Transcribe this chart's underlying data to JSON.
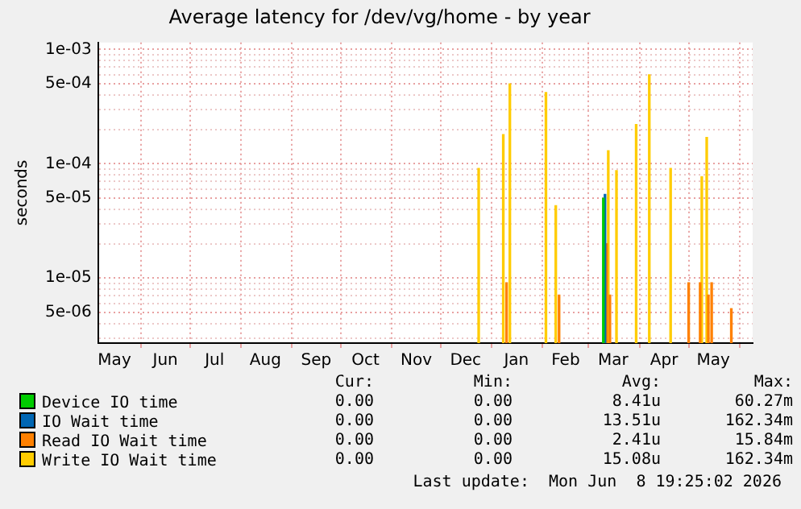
{
  "chart_data": {
    "type": "bar",
    "title": "Average latency for /dev/vg/home - by year",
    "ylabel": "seconds",
    "log": "y",
    "grid": true,
    "legend": "bottom",
    "xlim": [
      "2025-05-06",
      "2026-06-09"
    ],
    "xticks": [
      {
        "value": "2025-05-16",
        "label": "May"
      },
      {
        "value": "2025-06-01",
        "label": null
      },
      {
        "value": "2025-06-16",
        "label": "Jun"
      },
      {
        "value": "2025-07-01",
        "label": null
      },
      {
        "value": "2025-07-16",
        "label": "Jul"
      },
      {
        "value": "2025-08-01",
        "label": null
      },
      {
        "value": "2025-08-16",
        "label": "Aug"
      },
      {
        "value": "2025-09-01",
        "label": null
      },
      {
        "value": "2025-09-16",
        "label": "Sep"
      },
      {
        "value": "2025-10-01",
        "label": null
      },
      {
        "value": "2025-10-16",
        "label": "Oct"
      },
      {
        "value": "2025-11-01",
        "label": null
      },
      {
        "value": "2025-11-16",
        "label": "Nov"
      },
      {
        "value": "2025-12-01",
        "label": null
      },
      {
        "value": "2025-12-16",
        "label": "Dec"
      },
      {
        "value": "2026-01-01",
        "label": null
      },
      {
        "value": "2026-01-16",
        "label": "Jan"
      },
      {
        "value": "2026-02-01",
        "label": null
      },
      {
        "value": "2026-02-15",
        "label": "Feb"
      },
      {
        "value": "2026-03-01",
        "label": null
      },
      {
        "value": "2026-03-16",
        "label": "Mar"
      },
      {
        "value": "2026-04-01",
        "label": null
      },
      {
        "value": "2026-04-16",
        "label": "Apr"
      },
      {
        "value": "2026-05-01",
        "label": null
      },
      {
        "value": "2026-05-16",
        "label": "May"
      },
      {
        "value": "2026-06-01",
        "label": null
      }
    ],
    "ylim": [
      2.7e-06,
      0.00115
    ],
    "yticks": [
      {
        "value": 3e-06,
        "label": null
      },
      {
        "value": 4e-06,
        "label": null
      },
      {
        "value": 5e-06,
        "label": "5e-06"
      },
      {
        "value": 6e-06,
        "label": null
      },
      {
        "value": 7e-06,
        "label": null
      },
      {
        "value": 8e-06,
        "label": null
      },
      {
        "value": 9e-06,
        "label": null
      },
      {
        "value": 1e-05,
        "label": "1e-05"
      },
      {
        "value": 2e-05,
        "label": null
      },
      {
        "value": 3e-05,
        "label": null
      },
      {
        "value": 4e-05,
        "label": null
      },
      {
        "value": 5e-05,
        "label": "5e-05"
      },
      {
        "value": 6e-05,
        "label": null
      },
      {
        "value": 7e-05,
        "label": null
      },
      {
        "value": 8e-05,
        "label": null
      },
      {
        "value": 9e-05,
        "label": null
      },
      {
        "value": 0.0001,
        "label": "1e-04"
      },
      {
        "value": 0.0002,
        "label": null
      },
      {
        "value": 0.0003,
        "label": null
      },
      {
        "value": 0.0004,
        "label": null
      },
      {
        "value": 0.0005,
        "label": "5e-04"
      },
      {
        "value": 0.0006,
        "label": null
      },
      {
        "value": 0.0007,
        "label": null
      },
      {
        "value": 0.0008,
        "label": null
      },
      {
        "value": 0.0009,
        "label": null
      },
      {
        "value": 0.001,
        "label": "1e-03"
      }
    ],
    "series": [
      {
        "name": "Device IO time",
        "color": "#00cc00",
        "x": [
          "2026-03-10"
        ],
        "values": [
          5e-05
        ]
      },
      {
        "name": "IO Wait time",
        "color": "#0066b3",
        "x": [
          "2026-03-11"
        ],
        "values": [
          5.4e-05
        ]
      },
      {
        "name": "Read IO Wait time",
        "color": "#ff8000",
        "x": [
          "2026-01-10",
          "2026-02-11",
          "2026-03-12",
          "2026-03-14",
          "2026-05-01",
          "2026-05-08",
          "2026-05-13",
          "2026-05-15",
          "2026-05-27"
        ],
        "values": [
          9.1e-06,
          7.1e-06,
          2e-05,
          7.1e-06,
          9.1e-06,
          9.1e-06,
          7.1e-06,
          9.1e-06,
          5.4e-06
        ]
      },
      {
        "name": "Write IO Wait time",
        "color": "#ffcc00",
        "x": [
          "2025-12-24",
          "2026-01-08",
          "2026-01-12",
          "2026-02-03",
          "2026-02-09",
          "2026-03-13",
          "2026-03-18",
          "2026-03-30",
          "2026-04-07",
          "2026-04-20",
          "2026-05-09",
          "2026-05-12"
        ],
        "values": [
          9.1e-05,
          0.00018,
          0.0005,
          0.00042,
          4.3e-05,
          0.00013,
          8.7e-05,
          0.00022,
          0.0006,
          9.1e-05,
          7.7e-05,
          0.00017
        ]
      }
    ],
    "annotations": [
      "Cur:",
      "Min:",
      "Avg:",
      "Max:",
      "0.00",
      "0.00",
      "8.41u",
      "60.27m",
      "0.00",
      "0.00",
      "13.51u",
      "162.34m",
      "0.00",
      "0.00",
      "2.41u",
      "15.84m",
      "0.00",
      "0.00",
      "15.08u",
      "162.34m",
      "Last update:  Mon Jun  8 19:25:02 2026"
    ]
  }
}
